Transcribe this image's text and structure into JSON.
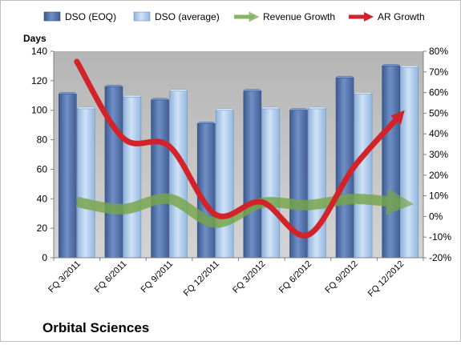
{
  "colors": {
    "dso_eoq": "#4f6fa8",
    "dso_average": "#a9c8ea",
    "revenue_growth": "#77a64a",
    "ar_growth": "#d2232a",
    "plot_bg": "#c0c0c0"
  },
  "chart_data": {
    "type": "bar",
    "title": "Orbital Sciences",
    "ylabel": "Days",
    "ylim": [
      0,
      140
    ],
    "yticks": [
      0,
      20,
      40,
      60,
      80,
      100,
      120,
      140
    ],
    "y2lim": [
      -0.2,
      0.8
    ],
    "y2ticks": [
      "-20%",
      "-10%",
      "0%",
      "10%",
      "20%",
      "30%",
      "40%",
      "50%",
      "60%",
      "70%",
      "80%"
    ],
    "y2tick_values": [
      -0.2,
      -0.1,
      0,
      0.1,
      0.2,
      0.3,
      0.4,
      0.5,
      0.6,
      0.7,
      0.8
    ],
    "yticks_labels": [
      "0",
      "20",
      "40",
      "60",
      "80",
      "100",
      "120",
      "140"
    ],
    "categories": [
      "FQ 3/2011",
      "FQ 6/2011",
      "FQ 9/2011",
      "FQ 12/2011",
      "FQ 3/2012",
      "FQ 6/2012",
      "FQ 9/2012",
      "FQ 12/2012"
    ],
    "legend_position": "top",
    "grid": false,
    "series": [
      {
        "name": "DSO (EOQ)",
        "kind": "bar",
        "axis": "left",
        "values": [
          111,
          116,
          107,
          91,
          113,
          100,
          122,
          130
        ]
      },
      {
        "name": "DSO (average)",
        "kind": "bar",
        "axis": "left",
        "values": [
          101,
          109,
          113,
          100,
          101,
          101,
          111,
          129
        ]
      },
      {
        "name": "Revenue Growth",
        "kind": "line",
        "axis": "right",
        "values": [
          0.07,
          0.035,
          0.085,
          -0.03,
          0.065,
          0.055,
          0.085,
          0.065
        ]
      },
      {
        "name": "AR Growth",
        "kind": "line",
        "axis": "right",
        "values": [
          0.75,
          0.38,
          0.34,
          0.01,
          0.07,
          -0.09,
          0.24,
          0.49
        ]
      }
    ]
  }
}
